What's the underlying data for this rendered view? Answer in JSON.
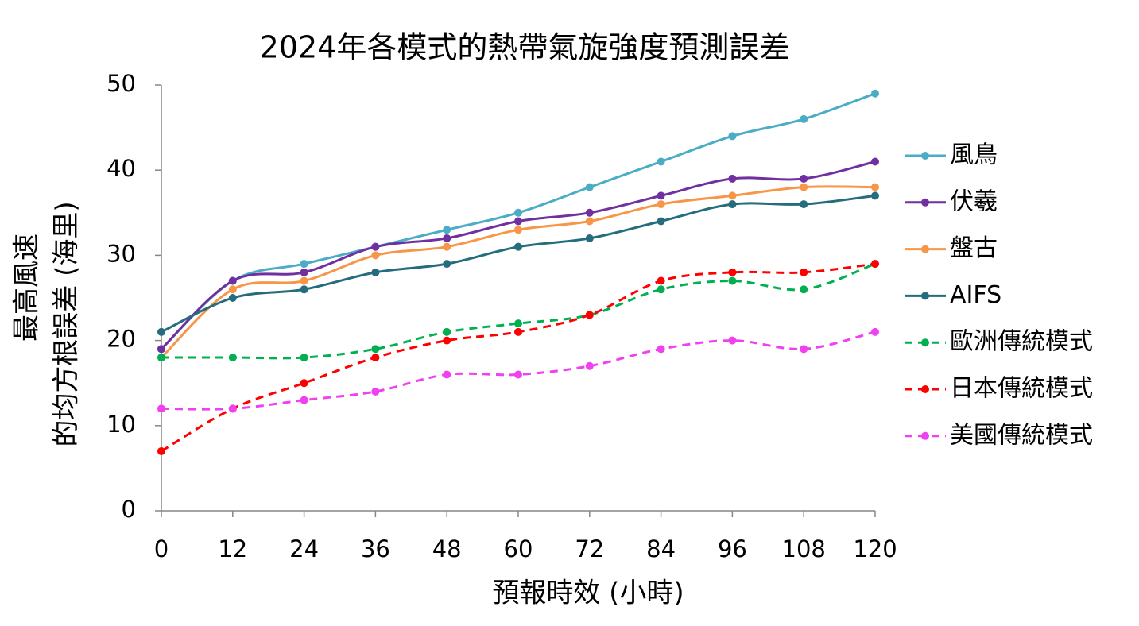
{
  "chart_data": {
    "type": "line",
    "title": "2024年各模式的熱帶氣旋強度預測誤差",
    "xlabel": "預報時效 (小時)",
    "ylabel": [
      "最高風速",
      "的均方根誤差 (海里)"
    ],
    "x": [
      0,
      12,
      24,
      36,
      48,
      60,
      72,
      84,
      96,
      108,
      120
    ],
    "xlim": [
      0,
      120
    ],
    "xticks": [
      0,
      12,
      24,
      36,
      48,
      60,
      72,
      84,
      96,
      108,
      120
    ],
    "ylim": [
      0,
      50
    ],
    "yticks": [
      0,
      10,
      20,
      30,
      40,
      50
    ],
    "grid": false,
    "smooth": true,
    "legend": "right",
    "series": [
      {
        "name": "風鳥",
        "color": "#4bacc6",
        "dashed": false,
        "values": [
          19,
          27,
          29,
          31,
          33,
          35,
          38,
          41,
          44,
          46,
          49
        ]
      },
      {
        "name": "伏羲",
        "color": "#7030a0",
        "dashed": false,
        "values": [
          19,
          27,
          28,
          31,
          32,
          34,
          35,
          37,
          39,
          39,
          41
        ]
      },
      {
        "name": "盤古",
        "color": "#f79646",
        "dashed": false,
        "values": [
          18,
          26,
          27,
          30,
          31,
          33,
          34,
          36,
          37,
          38,
          38
        ]
      },
      {
        "name": "AIFS",
        "color": "#256c7e",
        "dashed": false,
        "values": [
          21,
          25,
          26,
          28,
          29,
          31,
          32,
          34,
          36,
          36,
          37
        ]
      },
      {
        "name": "歐洲傳統模式",
        "color": "#00b050",
        "dashed": true,
        "values": [
          18,
          18,
          18,
          19,
          21,
          22,
          23,
          26,
          27,
          26,
          29
        ]
      },
      {
        "name": "日本傳統模式",
        "color": "#ff0000",
        "dashed": true,
        "values": [
          7,
          12,
          15,
          18,
          20,
          21,
          23,
          27,
          28,
          28,
          29
        ]
      },
      {
        "name": "美國傳統模式",
        "color": "#f040f0",
        "dashed": true,
        "values": [
          12,
          12,
          13,
          14,
          16,
          16,
          17,
          19,
          20,
          19,
          21
        ]
      }
    ]
  }
}
